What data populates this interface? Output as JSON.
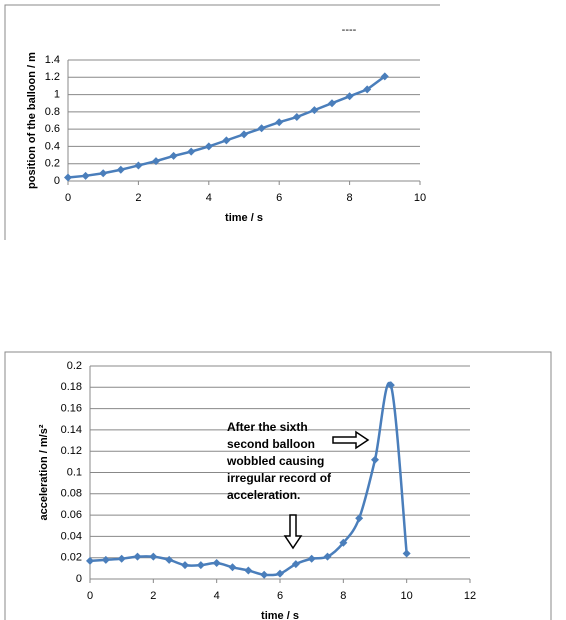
{
  "chart_data": [
    {
      "type": "line",
      "annotation": "----",
      "x_label": "time / s",
      "y_label": "position of the balloon  / m",
      "x": [
        0,
        0.5,
        1,
        1.5,
        2,
        2.5,
        3,
        3.5,
        4,
        4.5,
        5,
        5.5,
        6,
        6.5,
        7,
        7.5,
        8,
        8.5,
        9
      ],
      "series": [
        {
          "color": "#4a7ebb",
          "values": [
            0.04,
            0.06,
            0.09,
            0.13,
            0.18,
            0.23,
            0.29,
            0.34,
            0.4,
            0.47,
            0.54,
            0.61,
            0.68,
            0.74,
            0.82,
            0.9,
            0.98,
            1.06,
            1.21
          ]
        }
      ],
      "xlim": [
        0,
        10
      ],
      "xticks": [
        0,
        2,
        4,
        6,
        8,
        10
      ],
      "ylim": [
        0,
        1.4
      ],
      "yticks": [
        0,
        0.2,
        0.4,
        0.6,
        0.8,
        1,
        1.2,
        1.4
      ],
      "grid": true,
      "smooth": false
    },
    {
      "type": "line",
      "x_label": "time / s",
      "y_label": "acceleration / m/s²",
      "annotation_lines": [
        "After the sixth",
        "second balloon",
        "wobbled causing",
        "irregular record of",
        "acceleration."
      ],
      "x": [
        0,
        0.5,
        1,
        1.5,
        2,
        2.5,
        3,
        3.5,
        4,
        4.5,
        5,
        5.5,
        6,
        6.5,
        7,
        7.5,
        8,
        8.5,
        9,
        9.5,
        10
      ],
      "series": [
        {
          "color": "#4a7ebb",
          "values": [
            0.017,
            0.018,
            0.019,
            0.021,
            0.021,
            0.018,
            0.013,
            0.013,
            0.015,
            0.011,
            0.008,
            0.004,
            0.005,
            0.014,
            0.019,
            0.021,
            0.034,
            0.057,
            0.112,
            0.182,
            0.024
          ]
        }
      ],
      "xlim": [
        0,
        12
      ],
      "xticks": [
        0,
        2,
        4,
        6,
        8,
        10,
        12
      ],
      "ylim": [
        0,
        0.2
      ],
      "yticks": [
        0,
        0.02,
        0.04,
        0.06,
        0.08,
        0.1,
        0.12,
        0.14,
        0.16,
        0.18,
        0.2
      ],
      "grid": true,
      "smooth": true
    }
  ]
}
